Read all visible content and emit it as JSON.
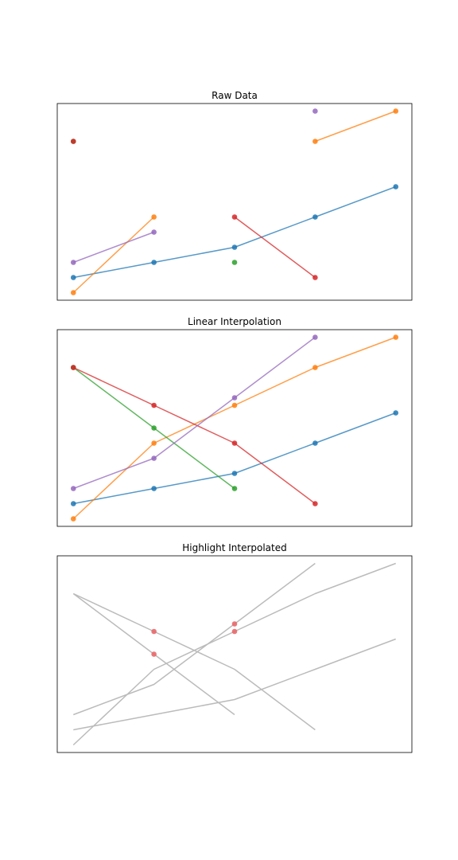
{
  "chart_data": [
    {
      "type": "line",
      "title": "Raw Data",
      "x": [
        0,
        1,
        2,
        3,
        4
      ],
      "ylim": [
        -0.5,
        12.5
      ],
      "grid": false,
      "axes_ticks_visible": false,
      "series": [
        {
          "color": "#1f77b4",
          "values": [
            1,
            2,
            3,
            5,
            7
          ]
        },
        {
          "color": "#ff7f0e",
          "values": [
            0,
            5,
            null,
            10,
            12
          ]
        },
        {
          "color": "#2ca02c",
          "values": [
            10,
            null,
            2,
            null,
            null
          ]
        },
        {
          "color": "#d62728",
          "values": [
            10,
            null,
            5,
            1,
            null
          ]
        },
        {
          "color": "#9467bd",
          "values": [
            2,
            4,
            null,
            12,
            null
          ]
        }
      ]
    },
    {
      "type": "line",
      "title": "Linear Interpolation",
      "x": [
        0,
        1,
        2,
        3,
        4
      ],
      "ylim": [
        -0.5,
        12.5
      ],
      "grid": false,
      "axes_ticks_visible": false,
      "series": [
        {
          "color": "#1f77b4",
          "values": [
            1,
            2,
            3,
            5,
            7
          ]
        },
        {
          "color": "#ff7f0e",
          "values": [
            0,
            5,
            7.5,
            10,
            12
          ]
        },
        {
          "color": "#2ca02c",
          "values": [
            10,
            6,
            2,
            null,
            null
          ]
        },
        {
          "color": "#d62728",
          "values": [
            10,
            7.5,
            5,
            1,
            null
          ]
        },
        {
          "color": "#9467bd",
          "values": [
            2,
            4,
            8,
            12,
            null
          ]
        }
      ]
    },
    {
      "type": "line",
      "title": "Highlight Interpolated",
      "x": [
        0,
        1,
        2,
        3,
        4
      ],
      "ylim": [
        -0.5,
        12.5
      ],
      "grid": false,
      "axes_ticks_visible": false,
      "line_color": "#bbbbbb",
      "highlight_color": "#e8686a",
      "series": [
        {
          "values": [
            1,
            2,
            3,
            5,
            7
          ]
        },
        {
          "values": [
            0,
            5,
            7.5,
            10,
            12
          ]
        },
        {
          "values": [
            10,
            6,
            2,
            null,
            null
          ]
        },
        {
          "values": [
            10,
            7.5,
            5,
            1,
            null
          ]
        },
        {
          "values": [
            2,
            4,
            8,
            12,
            null
          ]
        }
      ],
      "highlighted_points": [
        {
          "x": 1,
          "y": 7.5
        },
        {
          "x": 1,
          "y": 6
        },
        {
          "x": 2,
          "y": 8
        },
        {
          "x": 2,
          "y": 7.5
        }
      ]
    }
  ]
}
